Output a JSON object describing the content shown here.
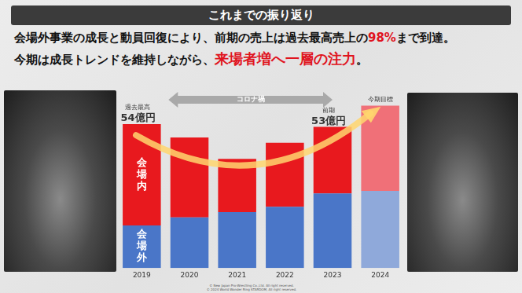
{
  "header": {
    "title": "これまでの振り返り"
  },
  "headline": [
    [
      {
        "text": "会場外事業の成長と動員回復により、前期の売上は過去最高売上の",
        "emphasis": false
      },
      {
        "text": "98%",
        "emphasis": true
      },
      {
        "text": "まで到達。",
        "emphasis": false
      }
    ],
    [
      {
        "text": "今期は成長トレンドを維持しながら、",
        "emphasis": false
      },
      {
        "text": "来場者増へ一層の注力",
        "emphasis": true
      },
      {
        "text": "。",
        "emphasis": false
      }
    ]
  ],
  "footnotes": [
    "© New Japan Pro-Wrestling Co.,Ltd. All right reserved.",
    "© 2024 World Wonder Ring STARDOM, All right reserved."
  ],
  "chart_data": {
    "type": "bar",
    "stacked": true,
    "tick_labels": "x",
    "grid": false,
    "categories": [
      "2019",
      "2020",
      "2021",
      "2022",
      "2023",
      "2024"
    ],
    "series": [
      {
        "name": "会場外",
        "colors": [
          "#4a76c8",
          "#4a76c8",
          "#4a76c8",
          "#4a76c8",
          "#4a76c8",
          "#8fa9da"
        ],
        "values": [
          16,
          19,
          21,
          23,
          28,
          29
        ]
      },
      {
        "name": "会場内",
        "colors": [
          "#e8191e",
          "#e8191e",
          "#e8191e",
          "#e8191e",
          "#e8191e",
          "#f07078"
        ],
        "values": [
          38,
          30,
          20,
          24,
          25,
          32
        ]
      }
    ],
    "ylim": [
      0,
      62
    ],
    "annotations": [
      {
        "category": "2019",
        "text": "過去最高",
        "value": 54,
        "value_label": "54億円"
      },
      {
        "category": "2023",
        "text": "前期",
        "value": 53,
        "value_label": "53億円"
      },
      {
        "category": "2024",
        "text": "今期目標"
      }
    ],
    "period": {
      "text": "コロナ禍",
      "from": "2020",
      "to": "2022"
    }
  }
}
